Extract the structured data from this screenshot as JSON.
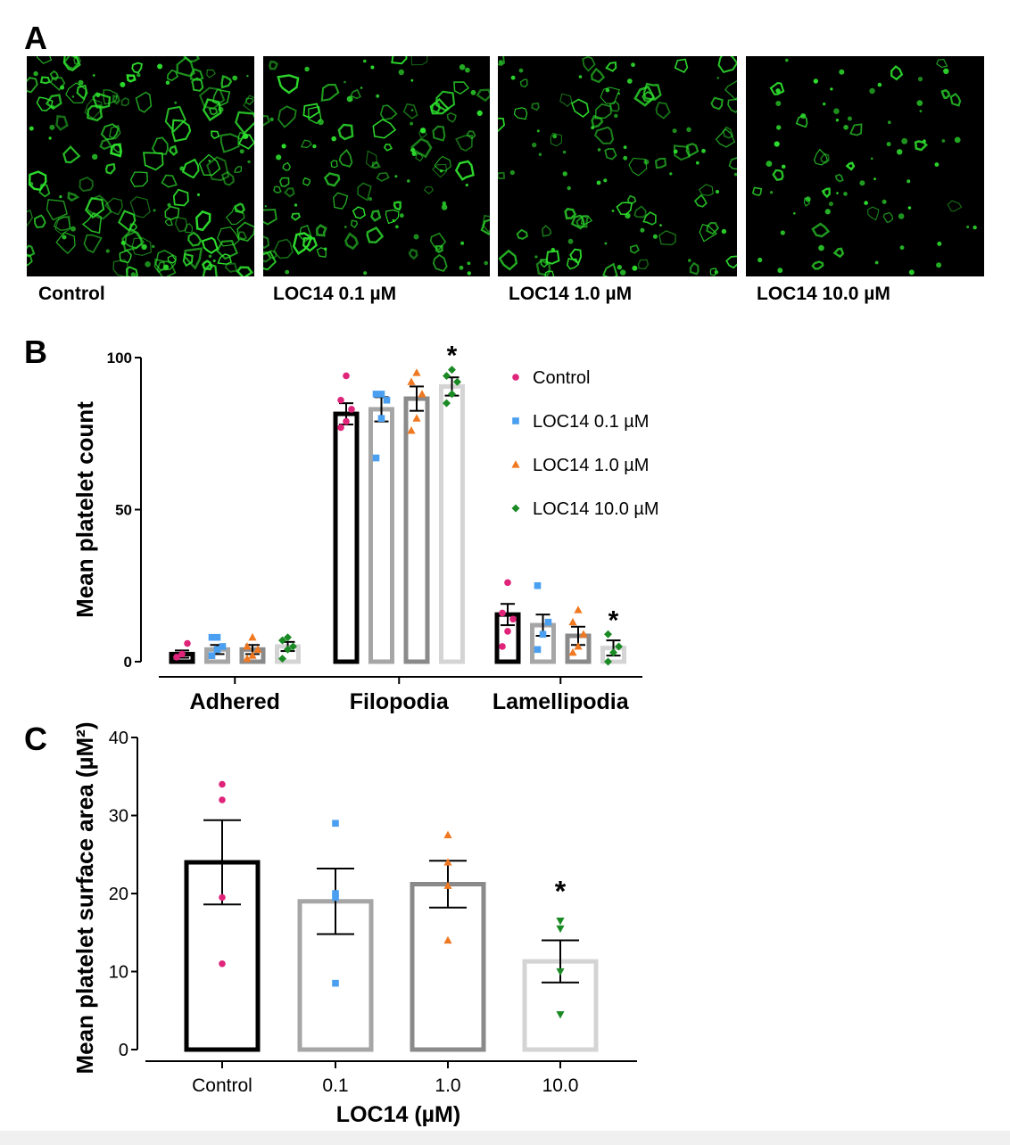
{
  "panels": {
    "a_letter": "A",
    "b_letter": "B",
    "c_letter": "C"
  },
  "micrographs": {
    "labels": [
      "Control",
      "LOC14 0.1 µM",
      "LOC14 1.0 µM",
      "LOC14 10.0 µM"
    ],
    "stain_color": "#2ee02e",
    "density": [
      1.0,
      0.8,
      0.75,
      0.45
    ],
    "image_description_note": ""
  },
  "colors": {
    "control": "#e0247a",
    "loc01": "#4a9ff0",
    "loc1": "#f07820",
    "loc10": "#1a8a24",
    "bar_control": "#000000",
    "bar_loc01": "#a6a6a6",
    "bar_loc1": "#8a8a8a",
    "bar_loc10": "#d4d4d4"
  },
  "chart_data": [
    {
      "type": "bar",
      "panel": "B",
      "ylabel": "Mean platelet count",
      "ylim": [
        0,
        100
      ],
      "yticks": [
        "0",
        "50",
        "100"
      ],
      "categories": [
        "Adhered",
        "Filopodia",
        "Lamellipodia"
      ],
      "legend_position": "top-right",
      "series": [
        {
          "name": "Control",
          "marker": "circle",
          "values": [
            2.5,
            81.5,
            15.5
          ],
          "errors": [
            1.2,
            3.5,
            3.5
          ],
          "points": [
            [
              1.5,
              2.5,
              6
            ],
            [
              77,
              79,
              83,
              86,
              94
            ],
            [
              5,
              10,
              14,
              16,
              26
            ]
          ]
        },
        {
          "name": "LOC14 0.1 µM",
          "marker": "square",
          "values": [
            4,
            83,
            12
          ],
          "errors": [
            1.5,
            4,
            3.5
          ],
          "points": [
            [
              2,
              4,
              5,
              8,
              8
            ],
            [
              67,
              80,
              86,
              88,
              88
            ],
            [
              4,
              9,
              13,
              25
            ]
          ]
        },
        {
          "name": "LOC14 1.0 µM",
          "marker": "triangle",
          "values": [
            4,
            86.5,
            8.5
          ],
          "errors": [
            1.5,
            4,
            3
          ],
          "points": [
            [
              1,
              2,
              4,
              5,
              8
            ],
            [
              76,
              80,
              88,
              92,
              95
            ],
            [
              3,
              5,
              9,
              13,
              17
            ]
          ]
        },
        {
          "name": "LOC14 10.0 µM",
          "marker": "diamond",
          "values": [
            5,
            90.5,
            4.5
          ],
          "errors": [
            1.5,
            3,
            2.5
          ],
          "points": [
            [
              1,
              4,
              5,
              7,
              8
            ],
            [
              85,
              88,
              92,
              94,
              96
            ],
            [
              0,
              3,
              5,
              9
            ]
          ]
        }
      ],
      "significance": [
        {
          "category": "Filopodia",
          "series": "LOC14 10.0 µM",
          "label": "*"
        },
        {
          "category": "Lamellipodia",
          "series": "LOC14 10.0 µM",
          "label": "*"
        }
      ]
    },
    {
      "type": "bar",
      "panel": "C",
      "ylabel": "Mean platelet surface area (µM²)",
      "xlabel": "LOC14 (µM)",
      "ylim": [
        0,
        40
      ],
      "yticks": [
        "0",
        "10",
        "20",
        "30",
        "40"
      ],
      "categories": [
        "Control",
        "0.1",
        "1.0",
        "10.0"
      ],
      "markers": [
        "circle",
        "square",
        "triangle",
        "triangle-down"
      ],
      "values": [
        24,
        19,
        21.2,
        11.3
      ],
      "errors": [
        5.4,
        4.2,
        3,
        2.7
      ],
      "points": [
        [
          11,
          19.5,
          32,
          34
        ],
        [
          8.5,
          19.5,
          20,
          29
        ],
        [
          14,
          21,
          24,
          27.5
        ],
        [
          4.5,
          10,
          15.5,
          16.5
        ]
      ],
      "significance": [
        {
          "category": "10.0",
          "label": "*"
        }
      ]
    }
  ]
}
